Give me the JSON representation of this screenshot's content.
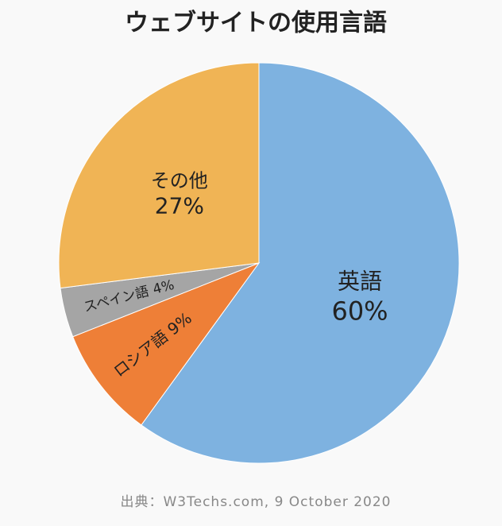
{
  "chart_data": {
    "type": "pie",
    "title": "ウェブサイトの使用言語",
    "categories": [
      "英語",
      "ロシア語",
      "スペイン語",
      "その他"
    ],
    "values": [
      60,
      9,
      4,
      27
    ],
    "value_labels": [
      "60%",
      "9%",
      "4%",
      "27%"
    ],
    "colors": [
      "#7eb2e0",
      "#ee7f37",
      "#a5a5a5",
      "#f0b455"
    ],
    "source": "出典：W3Techs.com, 9 October 2020"
  }
}
